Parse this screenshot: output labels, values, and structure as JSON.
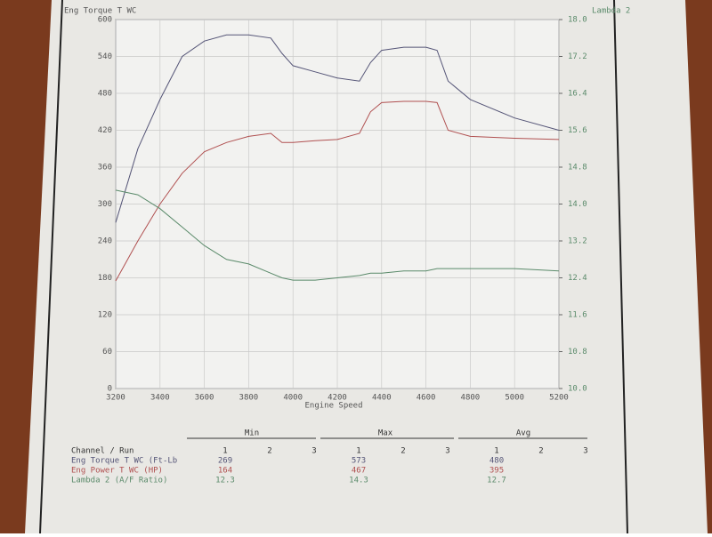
{
  "chart_data": {
    "type": "line",
    "y_label": "Eng Torque T WC",
    "y2_label": "Lambda 2",
    "x_label": "Engine Speed",
    "x": [
      3200,
      3300,
      3400,
      3500,
      3600,
      3700,
      3800,
      3900,
      3950,
      4000,
      4100,
      4200,
      4300,
      4350,
      4400,
      4500,
      4600,
      4650,
      4700,
      4800,
      5000,
      5200
    ],
    "series": [
      {
        "color": "#555577",
        "values": [
          270,
          390,
          470,
          540,
          565,
          575,
          575,
          570,
          545,
          525,
          515,
          505,
          500,
          530,
          550,
          555,
          555,
          550,
          500,
          470,
          440,
          420
        ]
      },
      {
        "color": "#b05050",
        "values": [
          175,
          240,
          300,
          350,
          385,
          400,
          410,
          415,
          400,
          400,
          403,
          405,
          415,
          450,
          465,
          467,
          467,
          465,
          420,
          410,
          407,
          405
        ]
      },
      {
        "color": "#5a8a6a",
        "axis": "y2",
        "values": [
          14.3,
          14.2,
          13.9,
          13.5,
          13.1,
          12.8,
          12.7,
          12.5,
          12.4,
          12.35,
          12.35,
          12.4,
          12.45,
          12.5,
          12.5,
          12.55,
          12.55,
          12.6,
          12.6,
          12.6,
          12.6,
          12.55
        ]
      }
    ],
    "xlim": [
      3200,
      5200
    ],
    "xticks": [
      3200,
      3400,
      3600,
      3800,
      4000,
      4200,
      4400,
      4600,
      4800,
      5000,
      5200
    ],
    "ylim": [
      0,
      600
    ],
    "yticks": [
      0,
      60,
      120,
      180,
      240,
      300,
      360,
      420,
      480,
      540,
      600
    ],
    "y2lim": [
      10,
      18
    ],
    "y2ticks": [
      {
        "value": 10,
        "label": "10.0"
      },
      10.8,
      11.6,
      12.4,
      13.2,
      {
        "value": 14,
        "label": "14.0"
      },
      14.8,
      15.6,
      16.4,
      17.2,
      {
        "value": 18,
        "label": "18.0"
      }
    ],
    "grid": true
  },
  "table": {
    "groups": [
      "Min",
      "Max",
      "Avg"
    ],
    "runs": [
      "1",
      "2",
      "3"
    ],
    "row_header": "Channel / Run",
    "rows": [
      [
        "Eng Torque T WC (Ft-Lb",
        "269",
        "573",
        "480"
      ],
      [
        "Eng Power T WC (HP)",
        "164",
        "467",
        "395"
      ],
      [
        "Lambda 2 (A/F Ratio)",
        "12.3",
        "14.3",
        "12.7"
      ]
    ],
    "row_colors": [
      "#555577",
      "#b05050",
      "#5a8a6a"
    ]
  }
}
